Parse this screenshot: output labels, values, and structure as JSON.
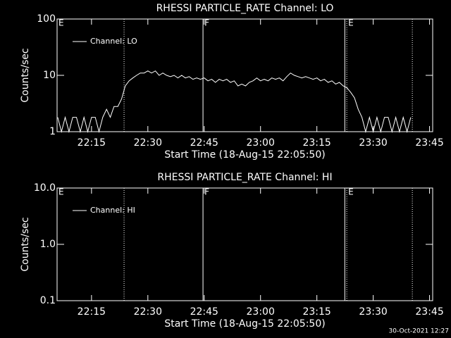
{
  "chart_data": [
    {
      "type": "line",
      "title": "RHESSI PARTICLE_RATE Channel: LO",
      "xlabel": "Start Time (18-Aug-15 22:05:50)",
      "ylabel": "Counts/sec",
      "log_y": true,
      "legend": "top-left",
      "xlim": [
        "22:05:50",
        "23:45:50"
      ],
      "xticks": [
        "22:15",
        "22:30",
        "22:45",
        "23:00",
        "23:15",
        "23:30",
        "23:45"
      ],
      "ylim": [
        1,
        100
      ],
      "yticks": [
        1,
        10,
        100
      ],
      "vlines": [
        {
          "x": "22:23:40",
          "style": "dotted"
        },
        {
          "x": "22:44:41",
          "style": "solid"
        },
        {
          "x": "23:22:26",
          "style": "solid"
        },
        {
          "x": "23:22:58",
          "style": "dotted"
        },
        {
          "x": "23:40:25",
          "style": "dotted"
        }
      ],
      "flags": [
        {
          "x": "22:05:50",
          "label": "E"
        },
        {
          "x": "22:44:41",
          "label": "F"
        },
        {
          "x": "23:22:58",
          "label": "E"
        }
      ],
      "x": [
        "22:06:00",
        "22:07:00",
        "22:08:00",
        "22:09:00",
        "22:10:00",
        "22:11:00",
        "22:12:00",
        "22:13:00",
        "22:14:00",
        "22:15:00",
        "22:16:00",
        "22:17:00",
        "22:18:00",
        "22:19:00",
        "22:20:00",
        "22:21:00",
        "22:22:00",
        "22:23:00",
        "22:24:00",
        "22:25:00",
        "22:26:00",
        "22:27:00",
        "22:28:00",
        "22:29:00",
        "22:30:00",
        "22:31:00",
        "22:32:00",
        "22:33:00",
        "22:34:00",
        "22:35:00",
        "22:36:00",
        "22:37:00",
        "22:38:00",
        "22:39:00",
        "22:40:00",
        "22:41:00",
        "22:42:00",
        "22:43:00",
        "22:44:00",
        "22:45:00",
        "22:46:00",
        "22:47:00",
        "22:48:00",
        "22:49:00",
        "22:50:00",
        "22:51:00",
        "22:52:00",
        "22:53:00",
        "22:54:00",
        "22:55:00",
        "22:56:00",
        "22:57:00",
        "22:58:00",
        "22:59:00",
        "23:00:00",
        "23:01:00",
        "23:02:00",
        "23:03:00",
        "23:04:00",
        "23:05:00",
        "23:06:00",
        "23:07:00",
        "23:08:00",
        "23:09:00",
        "23:10:00",
        "23:11:00",
        "23:12:00",
        "23:13:00",
        "23:14:00",
        "23:15:00",
        "23:16:00",
        "23:17:00",
        "23:18:00",
        "23:19:00",
        "23:20:00",
        "23:21:00",
        "23:22:00",
        "23:23:00",
        "23:24:00",
        "23:25:00",
        "23:26:00",
        "23:27:00",
        "23:28:00",
        "23:29:00",
        "23:30:00",
        "23:31:00",
        "23:32:00",
        "23:33:00",
        "23:34:00",
        "23:35:00",
        "23:36:00",
        "23:37:00",
        "23:38:00",
        "23:39:00",
        "23:40:00"
      ],
      "series": [
        {
          "name": "Channel: LO",
          "color": "#ffffff",
          "values": [
            1.8,
            1,
            1.8,
            1,
            1.8,
            1.8,
            1,
            1.8,
            1,
            1.8,
            1.8,
            1,
            1.8,
            2.5,
            1.8,
            2.8,
            2.8,
            3.8,
            6.5,
            8,
            9,
            10,
            11,
            11,
            12,
            11,
            12,
            10,
            11,
            10,
            9.5,
            10,
            9,
            10,
            9,
            9.5,
            8.5,
            9,
            8.5,
            9,
            8,
            8.5,
            7.5,
            8.5,
            8,
            8.5,
            7.5,
            8,
            6.5,
            7,
            6.5,
            7.5,
            8,
            9,
            8,
            8.5,
            8,
            9,
            8.5,
            9,
            8,
            9.5,
            11,
            10,
            9.5,
            9,
            9.5,
            9,
            8.5,
            9,
            8,
            8.5,
            7.5,
            8,
            7,
            7.5,
            6.5,
            6,
            5,
            4,
            2.5,
            1.8,
            1,
            1.8,
            1,
            1.8,
            1,
            1.8,
            1.8,
            1,
            1.8,
            1,
            1.8,
            1,
            1.8
          ]
        }
      ]
    },
    {
      "type": "line",
      "title": "RHESSI PARTICLE_RATE Channel: HI",
      "xlabel": "Start Time (18-Aug-15 22:05:50)",
      "ylabel": "Counts/sec",
      "log_y": true,
      "legend": "top-left",
      "xlim": [
        "22:05:50",
        "23:45:50"
      ],
      "xticks": [
        "22:15",
        "22:30",
        "22:45",
        "23:00",
        "23:15",
        "23:30",
        "23:45"
      ],
      "ylim": [
        0.1,
        10
      ],
      "yticks": [
        {
          "value": 0.1,
          "label": "0.1"
        },
        {
          "value": 1,
          "label": "1.0"
        },
        {
          "value": 10,
          "label": "10.0"
        }
      ],
      "vlines": [
        {
          "x": "22:23:40",
          "style": "dotted"
        },
        {
          "x": "22:44:41",
          "style": "solid"
        },
        {
          "x": "23:22:26",
          "style": "solid"
        },
        {
          "x": "23:22:58",
          "style": "dotted"
        },
        {
          "x": "23:40:25",
          "style": "dotted"
        }
      ],
      "flags": [
        {
          "x": "22:05:50",
          "label": "E"
        },
        {
          "x": "22:44:41",
          "label": "F"
        },
        {
          "x": "23:22:58",
          "label": "E"
        }
      ],
      "x": [],
      "series": [
        {
          "name": "Channel: HI",
          "color": "#ffffff",
          "values": []
        }
      ]
    }
  ],
  "footer": "30-Oct-2021 12:27"
}
